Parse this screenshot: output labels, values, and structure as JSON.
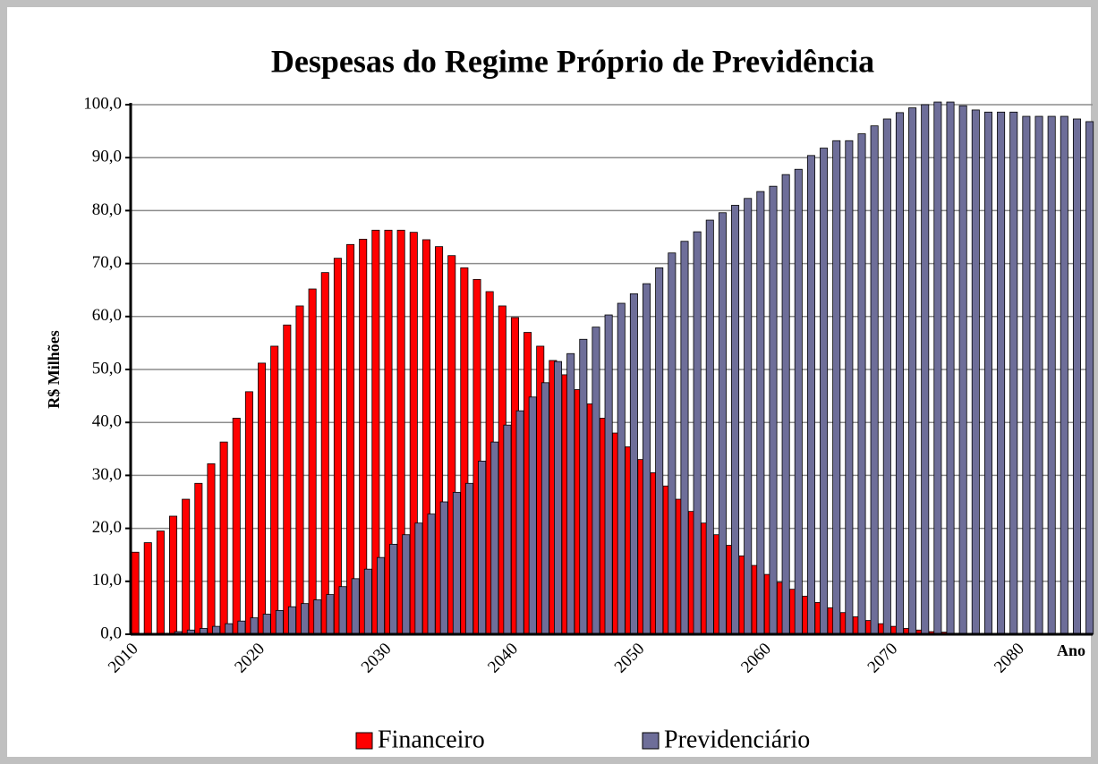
{
  "chart_data": {
    "type": "bar",
    "title": "Despesas do Regime Próprio de Previdência",
    "y_label": "R$ Milhões",
    "x_label": "Ano",
    "categories": [
      "2010",
      null,
      null,
      null,
      null,
      null,
      null,
      null,
      null,
      null,
      "2020",
      null,
      null,
      null,
      null,
      null,
      null,
      null,
      null,
      null,
      "2030",
      null,
      null,
      null,
      null,
      null,
      null,
      null,
      null,
      null,
      "2040",
      null,
      null,
      null,
      null,
      null,
      null,
      null,
      null,
      null,
      "2050",
      null,
      null,
      null,
      null,
      null,
      null,
      null,
      null,
      null,
      "2060",
      null,
      null,
      null,
      null,
      null,
      null,
      null,
      null,
      null,
      "2070",
      null,
      null,
      null,
      null,
      null,
      null,
      null,
      null,
      null,
      "2080",
      null,
      null,
      null,
      null,
      null
    ],
    "series": [
      {
        "name": "Financeiro",
        "color": "#ff0000",
        "values": [
          15.5,
          17.3,
          19.5,
          22.3,
          25.5,
          28.5,
          32.2,
          36.3,
          40.8,
          45.8,
          51.2,
          54.4,
          58.4,
          62,
          65.2,
          68.3,
          71,
          73.6,
          74.6,
          76.3,
          76.3,
          76.3,
          75.9,
          74.5,
          73.2,
          71.5,
          69.2,
          67,
          64.7,
          62,
          59.8,
          57,
          54.4,
          51.7,
          49,
          46.2,
          43.5,
          40.8,
          38,
          35.4,
          33,
          30.5,
          28,
          25.5,
          23.2,
          21,
          18.8,
          16.8,
          14.8,
          13,
          11.3,
          9.8,
          8.5,
          7.2,
          6,
          5,
          4.1,
          3.3,
          2.6,
          2,
          1.5,
          1.1,
          0.8,
          0.5,
          0.4,
          0.2,
          0,
          0,
          0,
          0,
          0,
          0,
          0,
          0,
          0,
          0
        ]
      },
      {
        "name": "Previdenciário",
        "color": "#6e6e99",
        "values": [
          0,
          0,
          0.2,
          0.5,
          0.8,
          1.1,
          1.5,
          2,
          2.5,
          3.1,
          3.8,
          4.5,
          5.2,
          5.8,
          6.5,
          7.5,
          9,
          10.5,
          12.3,
          14.5,
          17,
          18.8,
          21,
          22.7,
          25,
          26.8,
          28.5,
          32.7,
          36.3,
          39.5,
          42.2,
          44.8,
          47.5,
          51.5,
          53,
          55.7,
          58,
          60.3,
          62.5,
          64.3,
          66.2,
          69.2,
          72,
          74.2,
          76,
          78.2,
          79.6,
          81,
          82.3,
          83.6,
          84.6,
          86.8,
          87.8,
          90.4,
          91.8,
          93.2,
          93.2,
          94.5,
          96,
          97.3,
          98.5,
          99.4,
          100,
          100.5,
          100.5,
          99.8,
          99,
          98.6,
          98.6,
          98.6,
          97.8,
          97.8,
          97.8,
          97.8,
          97.3,
          96.8
        ]
      }
    ],
    "ylim": [
      0,
      100
    ],
    "yticks": [
      {
        "value": 0,
        "label": "0,0"
      },
      {
        "value": 10,
        "label": "10,0"
      },
      {
        "value": 20,
        "label": "20,0"
      },
      {
        "value": 30,
        "label": "30,0"
      },
      {
        "value": 40,
        "label": "40,0"
      },
      {
        "value": 50,
        "label": "50,0"
      },
      {
        "value": 60,
        "label": "60,0"
      },
      {
        "value": 70,
        "label": "70,0"
      },
      {
        "value": 80,
        "label": "80,0"
      },
      {
        "value": 90,
        "label": "90,0"
      },
      {
        "value": 100,
        "label": "100,0"
      }
    ],
    "grid": true,
    "legend": "bottom"
  }
}
